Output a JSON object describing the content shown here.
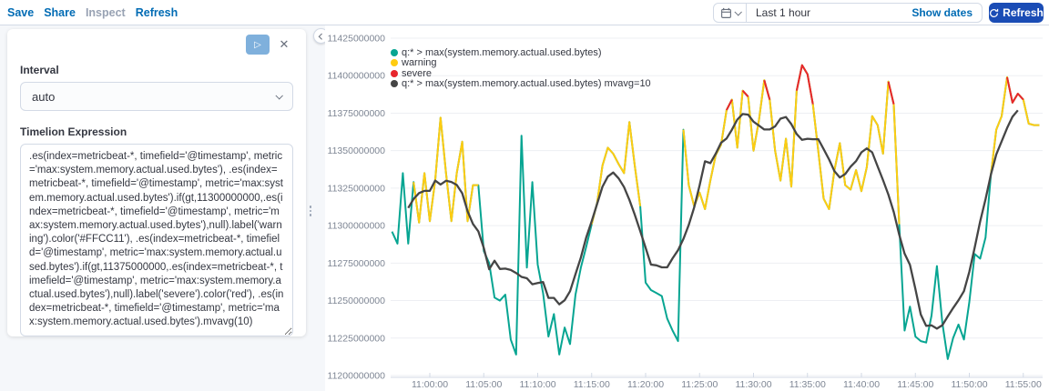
{
  "toolbar": {
    "links": [
      {
        "label": "Save",
        "disabled": false
      },
      {
        "label": "Share",
        "disabled": false
      },
      {
        "label": "Inspect",
        "disabled": true
      },
      {
        "label": "Refresh",
        "disabled": false
      }
    ]
  },
  "timepicker": {
    "value": "Last 1 hour",
    "show_dates": "Show dates",
    "refresh": "Refresh"
  },
  "editor": {
    "interval_label": "Interval",
    "interval_value": "auto",
    "expression_label": "Timelion Expression",
    "expression": ".es(index=metricbeat-*, timefield='@timestamp', metric='max:system.memory.actual.used.bytes'), .es(index=metricbeat-*, timefield='@timestamp', metric='max:system.memory.actual.used.bytes').if(gt,11300000000,.es(index=metricbeat-*, timefield='@timestamp', metric='max:system.memory.actual.used.bytes'),null).label('warning').color('#FFCC11'), .es(index=metricbeat-*, timefield='@timestamp', metric='max:system.memory.actual.used.bytes').if(gt,11375000000,.es(index=metricbeat-*, timefield='@timestamp', metric='max:system.memory.actual.used.bytes'),null).label('severe').color('red'), .es(index=metricbeat-*, timefield='@timestamp', metric='max:system.memory.actual.used.bytes').mvavg(10)"
  },
  "chart_data": {
    "type": "line",
    "title": "",
    "legend_position": "top-left",
    "grid": true,
    "grid_color": "#EDEFF3",
    "axis_line_color": "#D3DAE6",
    "axis_text_color": "#7E8694",
    "x_ticks": [
      "11:00:00",
      "11:05:00",
      "11:10:00",
      "11:15:00",
      "11:20:00",
      "11:25:00",
      "11:30:00",
      "11:35:00",
      "11:40:00",
      "11:45:00",
      "11:50:00",
      "11:55:00"
    ],
    "y_ticks": [
      "11200000000",
      "11225000000",
      "11250000000",
      "11275000000",
      "11300000000",
      "11325000000",
      "11350000000",
      "11375000000",
      "11400000000",
      "11425000000"
    ],
    "ylim_millions": [
      11200,
      11425
    ],
    "thresholds_millions": {
      "warning": 11300,
      "severe": 11375
    },
    "series": [
      {
        "key": "main",
        "name": "q:* > max(system.memory.actual.used.bytes)",
        "color": "#07A592"
      },
      {
        "key": "warning",
        "name": "warning",
        "color": "#FFCC11",
        "threshold_millions": 11300
      },
      {
        "key": "severe",
        "name": "severe",
        "color": "#E7262D",
        "threshold_millions": 11375
      },
      {
        "key": "mvavg",
        "name": "q:* > max(system.memory.actual.used.bytes) mvavg=10",
        "color": "#454545",
        "window": 10
      }
    ],
    "points": {
      "t_start_minutes": -3.5,
      "t_step_minutes": 0.5,
      "unit": "millions of bytes",
      "values_millions": [
        11296,
        11288,
        11335,
        11288,
        11329,
        11302,
        11335,
        11303,
        11330,
        11372,
        11335,
        11303,
        11335,
        11356,
        11303,
        11327,
        11327,
        11283,
        11275,
        11252,
        11250,
        11254,
        11224,
        11214,
        11360,
        11272,
        11329,
        11274,
        11255,
        11226,
        11241,
        11214,
        11232,
        11221,
        11254,
        11272,
        11286,
        11301,
        11315,
        11340,
        11352,
        11348,
        11341,
        11335,
        11369,
        11340,
        11313,
        11262,
        11257,
        11255,
        11253,
        11238,
        11230,
        11223,
        11364,
        11327,
        11313,
        11322,
        11311,
        11330,
        11347,
        11354,
        11377,
        11384,
        11352,
        11390,
        11386,
        11350,
        11370,
        11397,
        11384,
        11350,
        11330,
        11358,
        11326,
        11390,
        11407,
        11401,
        11381,
        11350,
        11318,
        11311,
        11337,
        11355,
        11327,
        11324,
        11337,
        11323,
        11339,
        11373,
        11367,
        11348,
        11396,
        11381,
        11301,
        11230,
        11246,
        11226,
        11223,
        11222,
        11240,
        11273,
        11235,
        11211,
        11225,
        11234,
        11224,
        11249,
        11281,
        11278,
        11292,
        11334,
        11364,
        11373,
        11399,
        11382,
        11388,
        11384,
        11368,
        11367,
        11367
      ]
    }
  }
}
